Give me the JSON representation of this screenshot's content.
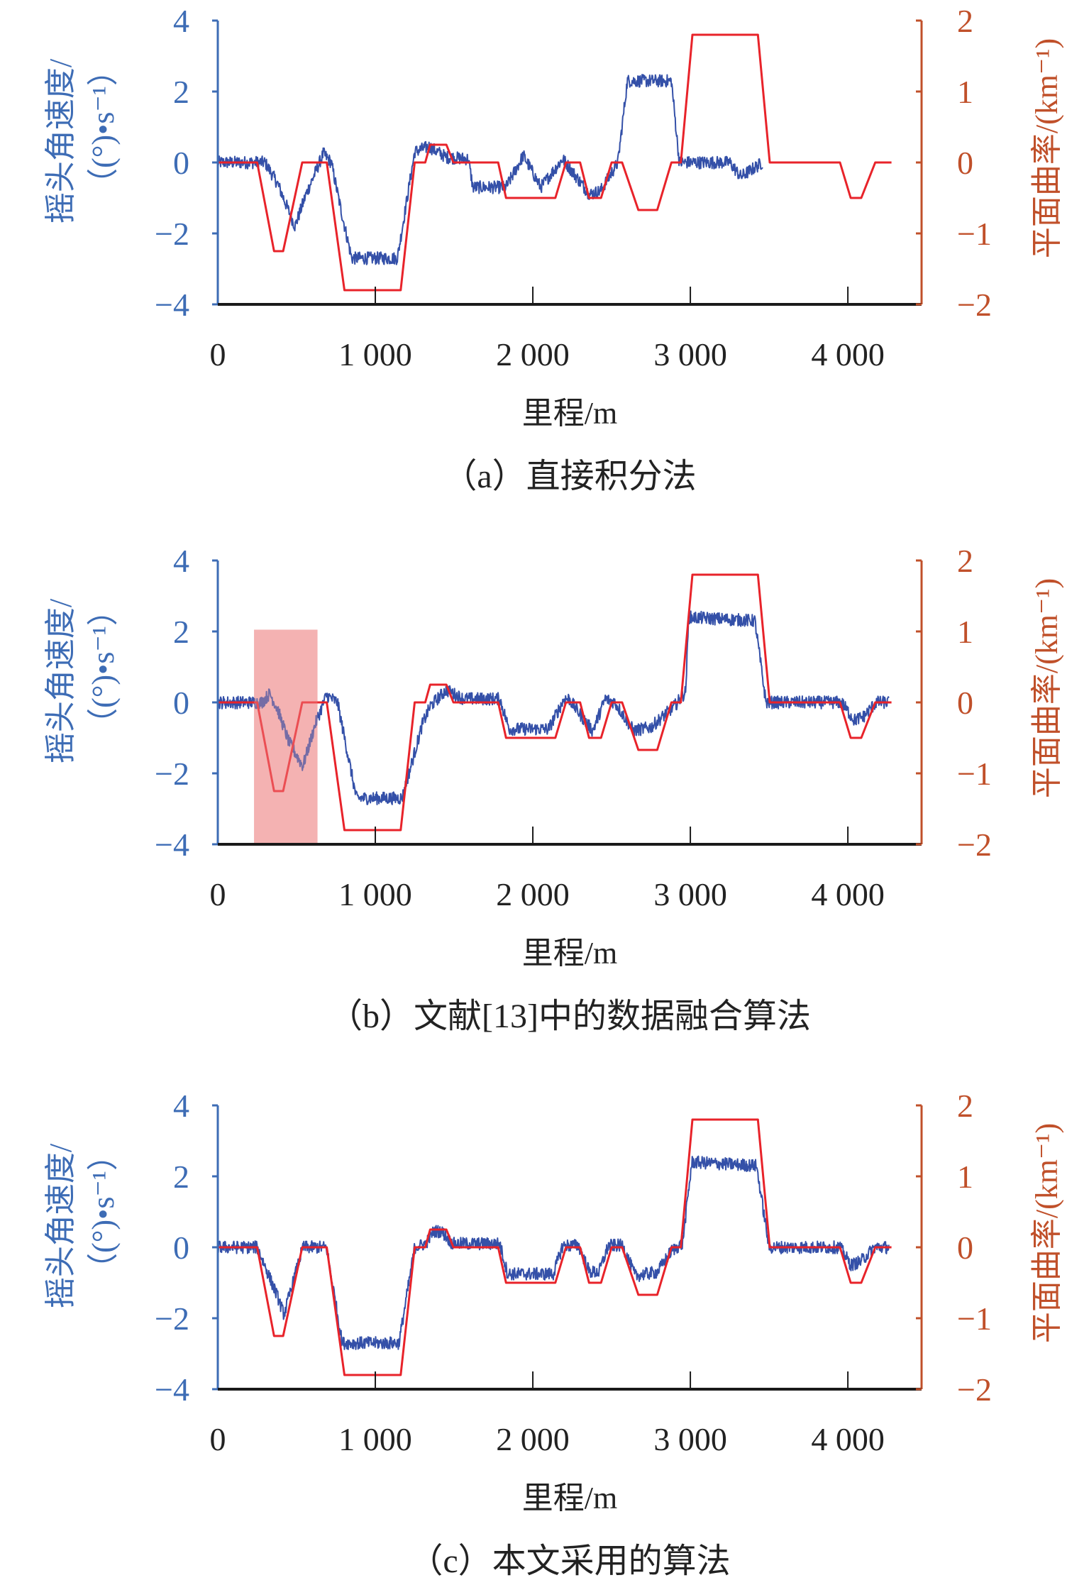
{
  "colors": {
    "left_axis": "#3d6cb5",
    "right_axis": "#c0502a",
    "yaw_rate": "#3450a8",
    "curvature": "#e8232a",
    "highlight": "#f2a0a0",
    "x_axis": "#1a1a1a"
  },
  "chart_data": [
    {
      "type": "line",
      "title": "（a）直接积分法",
      "xlabel": "里程/m",
      "ylabel_left": [
        "摇头角速度/",
        "（(°)•s⁻¹）"
      ],
      "ylabel_right": "平面曲率/(km⁻¹)",
      "xlim": [
        0,
        4468
      ],
      "ylim_left": [
        -4,
        4
      ],
      "ylim_right": [
        -2,
        2
      ],
      "xticks": [
        0,
        1000,
        2000,
        3000,
        4000
      ],
      "xtick_labels": [
        "0",
        "1 000",
        "2 000",
        "3 000",
        "4 000"
      ],
      "yticks_left": [
        "−4",
        "−2",
        "0",
        "2",
        "4"
      ],
      "yticks_right": [
        "−2",
        "−1",
        "0",
        "1",
        "2"
      ],
      "noise_amplitude": 0.18,
      "series": [
        {
          "name": "摇头角速度",
          "axis": "left",
          "points": [
            [
              0,
              0
            ],
            [
              300,
              0
            ],
            [
              380,
              -0.6
            ],
            [
              490,
              -1.8
            ],
            [
              560,
              -0.9
            ],
            [
              670,
              0.25
            ],
            [
              720,
              0
            ],
            [
              790,
              -1.5
            ],
            [
              850,
              -2.7
            ],
            [
              1140,
              -2.7
            ],
            [
              1250,
              0.3
            ],
            [
              1340,
              0.45
            ],
            [
              1450,
              0.15
            ],
            [
              1590,
              0.1
            ],
            [
              1620,
              -0.7
            ],
            [
              1830,
              -0.7
            ],
            [
              1940,
              0.2
            ],
            [
              2050,
              -0.7
            ],
            [
              2190,
              0.1
            ],
            [
              2360,
              -0.9
            ],
            [
              2430,
              -0.8
            ],
            [
              2540,
              0
            ],
            [
              2600,
              2.3
            ],
            [
              2880,
              2.3
            ],
            [
              2930,
              0
            ],
            [
              3250,
              0
            ],
            [
              3320,
              -0.4
            ],
            [
              3460,
              0
            ]
          ]
        },
        {
          "name": "平面曲率",
          "axis": "right",
          "points": [
            [
              0,
              0
            ],
            [
              250,
              0
            ],
            [
              357,
              -1.25
            ],
            [
              415,
              -1.25
            ],
            [
              536,
              0
            ],
            [
              692,
              0
            ],
            [
              804,
              -1.8
            ],
            [
              1161,
              -1.8
            ],
            [
              1250,
              0
            ],
            [
              1317,
              0
            ],
            [
              1348,
              0.25
            ],
            [
              1451,
              0.25
            ],
            [
              1496,
              0
            ],
            [
              1780,
              0
            ],
            [
              1830,
              -0.5
            ],
            [
              2143,
              -0.5
            ],
            [
              2210,
              0
            ],
            [
              2300,
              0
            ],
            [
              2357,
              -0.5
            ],
            [
              2433,
              -0.5
            ],
            [
              2500,
              0
            ],
            [
              2567,
              0
            ],
            [
              2670,
              -0.67
            ],
            [
              2790,
              -0.67
            ],
            [
              2880,
              0
            ],
            [
              2940,
              0
            ],
            [
              3013,
              1.8
            ],
            [
              3429,
              1.8
            ],
            [
              3504,
              0
            ],
            [
              3950,
              0
            ],
            [
              4018,
              -0.5
            ],
            [
              4085,
              -0.5
            ],
            [
              4174,
              0
            ],
            [
              4277,
              0
            ]
          ]
        }
      ]
    },
    {
      "type": "line",
      "title": "（b）文献[13]中的数据融合算法",
      "xlabel": "里程/m",
      "ylabel_left": [
        "摇头角速度/",
        "（(°)•s⁻¹）"
      ],
      "ylabel_right": "平面曲率/(km⁻¹)",
      "xlim": [
        0,
        4468
      ],
      "ylim_left": [
        -4,
        4
      ],
      "ylim_right": [
        -2,
        2
      ],
      "xticks": [
        0,
        1000,
        2000,
        3000,
        4000
      ],
      "xtick_labels": [
        "0",
        "1 000",
        "2 000",
        "3 000",
        "4 000"
      ],
      "yticks_left": [
        "−4",
        "−2",
        "0",
        "2",
        "4"
      ],
      "yticks_right": [
        "−2",
        "−1",
        "0",
        "1",
        "2"
      ],
      "noise_amplitude": 0.18,
      "highlight_region": {
        "x": [
          230,
          633
        ],
        "y_left": [
          -4,
          2.05
        ]
      },
      "series": [
        {
          "name": "摇头角速度",
          "axis": "left",
          "points": [
            [
              0,
              0
            ],
            [
              280,
              0
            ],
            [
              330,
              0.25
            ],
            [
              380,
              -0.2
            ],
            [
              450,
              -1.1
            ],
            [
              540,
              -1.8
            ],
            [
              620,
              -0.6
            ],
            [
              690,
              0.2
            ],
            [
              760,
              0
            ],
            [
              880,
              -2.7
            ],
            [
              1170,
              -2.7
            ],
            [
              1300,
              -0.6
            ],
            [
              1350,
              -0.1
            ],
            [
              1450,
              0.35
            ],
            [
              1560,
              0.1
            ],
            [
              1790,
              0.1
            ],
            [
              1850,
              -0.75
            ],
            [
              2100,
              -0.75
            ],
            [
              2200,
              0.1
            ],
            [
              2230,
              0.1
            ],
            [
              2310,
              -0.4
            ],
            [
              2380,
              -0.8
            ],
            [
              2460,
              0.1
            ],
            [
              2520,
              0
            ],
            [
              2640,
              -0.8
            ],
            [
              2750,
              -0.7
            ],
            [
              2900,
              -0.1
            ],
            [
              2970,
              0.3
            ],
            [
              2990,
              2.4
            ],
            [
              3410,
              2.3
            ],
            [
              3480,
              0
            ],
            [
              3960,
              0
            ],
            [
              4040,
              -0.5
            ],
            [
              4100,
              -0.4
            ],
            [
              4180,
              0
            ],
            [
              4260,
              0
            ]
          ]
        },
        {
          "name": "平面曲率",
          "axis": "right",
          "points": [
            [
              0,
              0
            ],
            [
              250,
              0
            ],
            [
              357,
              -1.25
            ],
            [
              415,
              -1.25
            ],
            [
              536,
              0
            ],
            [
              692,
              0
            ],
            [
              804,
              -1.8
            ],
            [
              1161,
              -1.8
            ],
            [
              1250,
              0
            ],
            [
              1317,
              0
            ],
            [
              1348,
              0.25
            ],
            [
              1451,
              0.25
            ],
            [
              1496,
              0
            ],
            [
              1780,
              0
            ],
            [
              1830,
              -0.5
            ],
            [
              2143,
              -0.5
            ],
            [
              2210,
              0
            ],
            [
              2300,
              0
            ],
            [
              2357,
              -0.5
            ],
            [
              2433,
              -0.5
            ],
            [
              2500,
              0
            ],
            [
              2567,
              0
            ],
            [
              2670,
              -0.67
            ],
            [
              2790,
              -0.67
            ],
            [
              2880,
              0
            ],
            [
              2940,
              0
            ],
            [
              3013,
              1.8
            ],
            [
              3429,
              1.8
            ],
            [
              3504,
              0
            ],
            [
              3950,
              0
            ],
            [
              4018,
              -0.5
            ],
            [
              4085,
              -0.5
            ],
            [
              4174,
              0
            ],
            [
              4277,
              0
            ]
          ]
        }
      ]
    },
    {
      "type": "line",
      "title": "（c）本文采用的算法",
      "xlabel": "里程/m",
      "ylabel_left": [
        "摇头角速度/",
        "（(°)•s⁻¹）"
      ],
      "ylabel_right": "平面曲率/(km⁻¹)",
      "xlim": [
        0,
        4468
      ],
      "ylim_left": [
        -4,
        4
      ],
      "ylim_right": [
        -2,
        2
      ],
      "xticks": [
        0,
        1000,
        2000,
        3000,
        4000
      ],
      "xtick_labels": [
        "0",
        "1 000",
        "2 000",
        "3 000",
        "4 000"
      ],
      "yticks_left": [
        "−4",
        "−2",
        "0",
        "2",
        "4"
      ],
      "yticks_right": [
        "−2",
        "−1",
        "0",
        "1",
        "2"
      ],
      "noise_amplitude": 0.18,
      "series": [
        {
          "name": "摇头角速度",
          "axis": "left",
          "points": [
            [
              0,
              0
            ],
            [
              250,
              0
            ],
            [
              380,
              -1.4
            ],
            [
              420,
              -1.9
            ],
            [
              540,
              0
            ],
            [
              690,
              0
            ],
            [
              790,
              -2.7
            ],
            [
              1150,
              -2.7
            ],
            [
              1250,
              0
            ],
            [
              1320,
              0.1
            ],
            [
              1370,
              0.45
            ],
            [
              1420,
              0.45
            ],
            [
              1490,
              0.1
            ],
            [
              1790,
              0.1
            ],
            [
              1840,
              -0.75
            ],
            [
              2130,
              -0.75
            ],
            [
              2190,
              0.05
            ],
            [
              2290,
              0.05
            ],
            [
              2360,
              -0.7
            ],
            [
              2420,
              -0.7
            ],
            [
              2480,
              0.05
            ],
            [
              2570,
              0.05
            ],
            [
              2650,
              -0.8
            ],
            [
              2790,
              -0.7
            ],
            [
              2880,
              -0.1
            ],
            [
              2950,
              0.1
            ],
            [
              3010,
              2.4
            ],
            [
              3420,
              2.3
            ],
            [
              3500,
              0
            ],
            [
              3950,
              0
            ],
            [
              4020,
              -0.5
            ],
            [
              4080,
              -0.4
            ],
            [
              4170,
              0
            ],
            [
              4260,
              0
            ]
          ]
        },
        {
          "name": "平面曲率",
          "axis": "right",
          "points": [
            [
              0,
              0
            ],
            [
              250,
              0
            ],
            [
              357,
              -1.25
            ],
            [
              415,
              -1.25
            ],
            [
              536,
              0
            ],
            [
              692,
              0
            ],
            [
              804,
              -1.8
            ],
            [
              1161,
              -1.8
            ],
            [
              1250,
              0
            ],
            [
              1317,
              0
            ],
            [
              1348,
              0.25
            ],
            [
              1451,
              0.25
            ],
            [
              1496,
              0
            ],
            [
              1780,
              0
            ],
            [
              1830,
              -0.5
            ],
            [
              2143,
              -0.5
            ],
            [
              2210,
              0
            ],
            [
              2300,
              0
            ],
            [
              2357,
              -0.5
            ],
            [
              2433,
              -0.5
            ],
            [
              2500,
              0
            ],
            [
              2567,
              0
            ],
            [
              2670,
              -0.67
            ],
            [
              2790,
              -0.67
            ],
            [
              2880,
              0
            ],
            [
              2940,
              0
            ],
            [
              3013,
              1.8
            ],
            [
              3429,
              1.8
            ],
            [
              3504,
              0
            ],
            [
              3950,
              0
            ],
            [
              4018,
              -0.5
            ],
            [
              4085,
              -0.5
            ],
            [
              4174,
              0
            ],
            [
              4277,
              0
            ]
          ]
        }
      ]
    }
  ]
}
